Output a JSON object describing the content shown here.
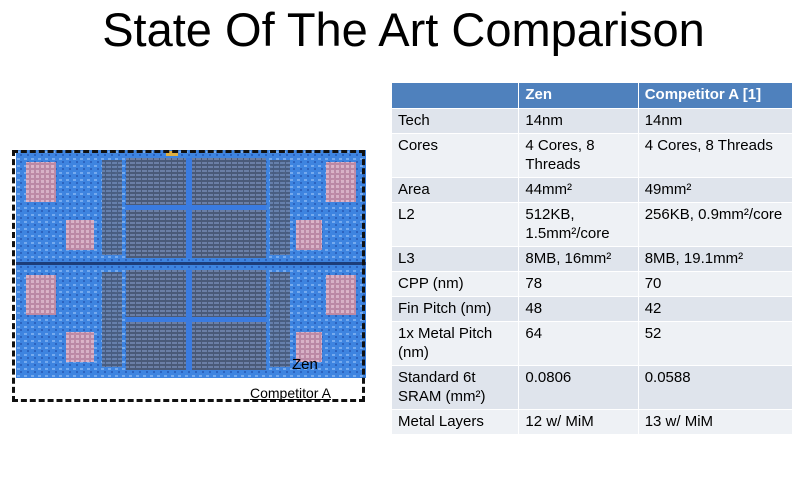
{
  "title": "State Of The Art Comparison",
  "die": {
    "zen_label": "Zen",
    "competitor_label": "Competitor A"
  },
  "table": {
    "headers": [
      "",
      "Zen",
      "Competitor A [1]"
    ],
    "rows": [
      {
        "label": "Tech",
        "zen": "14nm",
        "comp": "14nm"
      },
      {
        "label": "Cores",
        "zen": "4 Cores, 8 Threads",
        "comp": "4 Cores, 8 Threads"
      },
      {
        "label": "Area",
        "zen": "44mm²",
        "comp": "49mm²"
      },
      {
        "label": "L2",
        "zen": "512KB, 1.5mm²/core",
        "comp": "256KB, 0.9mm²/core"
      },
      {
        "label": "L3",
        "zen": "8MB, 16mm²",
        "comp": "8MB, 19.1mm²"
      },
      {
        "label": "CPP (nm)",
        "zen": "78",
        "comp": "70"
      },
      {
        "label": "Fin Pitch (nm)",
        "zen": "48",
        "comp": "42"
      },
      {
        "label": "1x Metal Pitch (nm)",
        "zen": "64",
        "comp": "52"
      },
      {
        "label": "Standard 6t SRAM (mm²)",
        "zen": "0.0806",
        "comp": "0.0588"
      },
      {
        "label": "Metal Layers",
        "zen": "12 w/ MiM",
        "comp": "13 w/ MiM"
      }
    ]
  },
  "colors": {
    "header_bg": "#4f81bd",
    "row_odd": "#dfe4ec",
    "row_even": "#eef1f5",
    "die_blue": "#2f6fd6"
  }
}
